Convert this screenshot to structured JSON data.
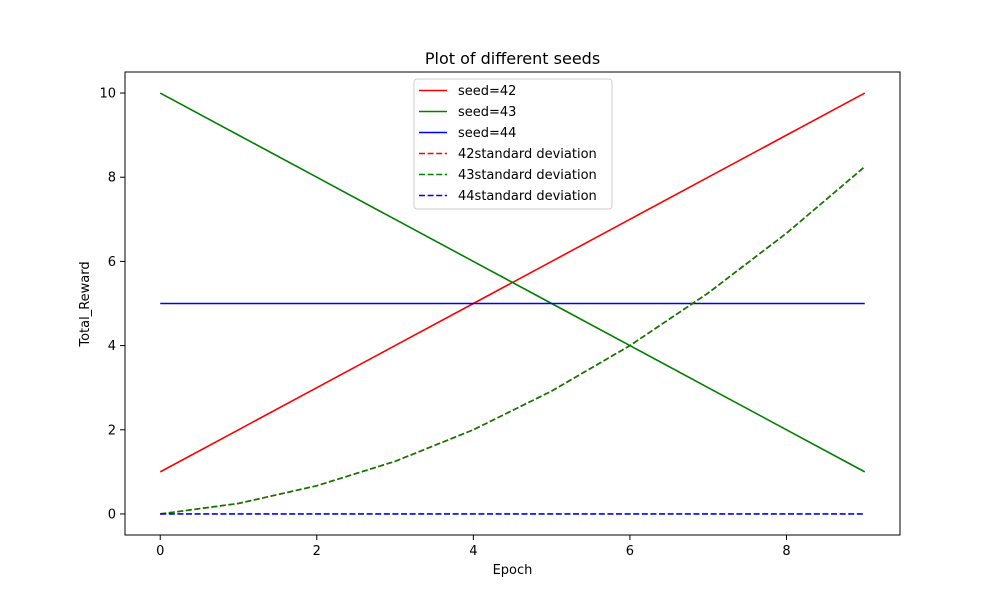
{
  "chart_data": {
    "type": "line",
    "title": "Plot of different seeds",
    "xlabel": "Epoch",
    "ylabel": "Total_Reward",
    "xlim": [
      -0.45,
      9.45
    ],
    "ylim": [
      -0.5,
      10.5
    ],
    "xticks": [
      0,
      2,
      4,
      6,
      8
    ],
    "yticks": [
      0,
      2,
      4,
      6,
      8,
      10
    ],
    "grid": false,
    "legend_position": "top-center",
    "x": [
      0,
      1,
      2,
      3,
      4,
      5,
      6,
      7,
      8,
      9
    ],
    "series": [
      {
        "name": "seed=42",
        "color": "#ff0000",
        "style": "solid",
        "values": [
          1,
          2,
          3,
          4,
          5,
          6,
          7,
          8,
          9,
          10
        ]
      },
      {
        "name": "seed=43",
        "color": "#008000",
        "style": "solid",
        "values": [
          10,
          9,
          8,
          7,
          6,
          5,
          4,
          3,
          2,
          1
        ]
      },
      {
        "name": "seed=44",
        "color": "#0000ff",
        "style": "solid",
        "values": [
          5,
          5,
          5,
          5,
          5,
          5,
          5,
          5,
          5,
          5
        ]
      },
      {
        "name": "42standard deviation",
        "color": "#ff0000",
        "style": "dashed",
        "values": [
          0,
          0.25,
          0.67,
          1.25,
          2.0,
          2.92,
          4.0,
          5.25,
          6.67,
          8.25
        ]
      },
      {
        "name": "43standard deviation",
        "color": "#008000",
        "style": "dashed",
        "values": [
          0,
          0.25,
          0.67,
          1.25,
          2.0,
          2.92,
          4.0,
          5.25,
          6.67,
          8.25
        ]
      },
      {
        "name": "44standard deviation",
        "color": "#0000ff",
        "style": "dashed",
        "values": [
          0,
          0,
          0,
          0,
          0,
          0,
          0,
          0,
          0,
          0
        ]
      }
    ]
  }
}
